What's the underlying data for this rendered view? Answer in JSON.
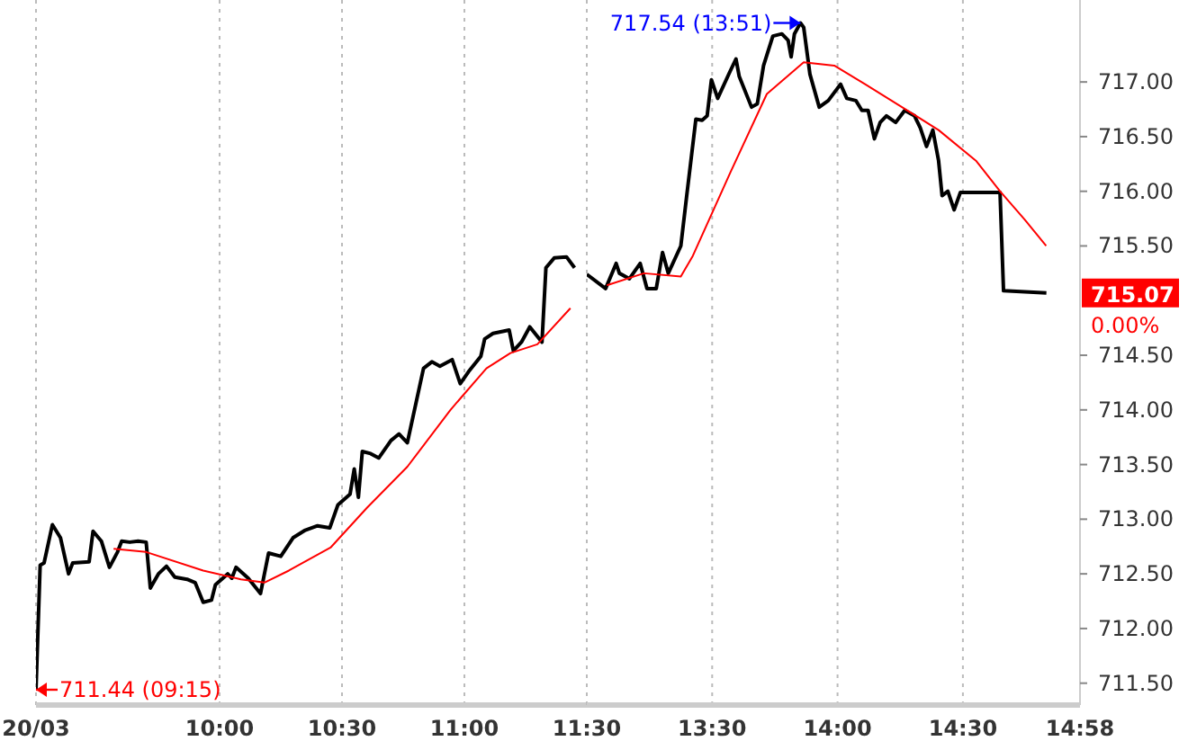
{
  "chart_data": [
    {
      "type": "line",
      "xlim": [
        9.25,
        11.5
      ],
      "xticks": [
        {
          "value": 9.25,
          "label": "20/03"
        },
        {
          "value": 10,
          "label": "10:00"
        },
        {
          "value": 10.5,
          "label": "10:30"
        },
        {
          "value": 11,
          "label": "11:00"
        },
        {
          "value": 11.5,
          "label": "11:30"
        }
      ],
      "ylim": [
        711.3,
        717.75
      ],
      "tick_labels": "x",
      "grid": "x",
      "series": [
        {
          "color": "#000000",
          "x": [
            9.25,
            9.267,
            9.283,
            9.317,
            9.35,
            9.383,
            9.4,
            9.467,
            9.483,
            9.517,
            9.55,
            9.583,
            9.6,
            9.633,
            9.667,
            9.7,
            9.717,
            9.75,
            9.783,
            9.817,
            9.867,
            9.9,
            9.933,
            9.967,
            9.983,
            10.033,
            10.05,
            10.067,
            10.117,
            10.167,
            10.2,
            10.25,
            10.3,
            10.35,
            10.4,
            10.45,
            10.483,
            10.533,
            10.55,
            10.567,
            10.583,
            10.617,
            10.65,
            10.7,
            10.733,
            10.767,
            10.833,
            10.867,
            10.9,
            10.95,
            10.983,
            11.017,
            11.067,
            11.083,
            11.117,
            11.183,
            11.2,
            11.233,
            11.267,
            11.317,
            11.333,
            11.367,
            11.417,
            11.45
          ],
          "values": [
            711.44,
            712.58,
            712.6,
            712.95,
            712.83,
            712.5,
            712.6,
            712.61,
            712.89,
            712.8,
            712.56,
            712.7,
            712.8,
            712.79,
            712.8,
            712.79,
            712.37,
            712.5,
            712.57,
            712.47,
            712.45,
            712.42,
            712.24,
            712.26,
            712.4,
            712.5,
            712.46,
            712.56,
            712.46,
            712.32,
            712.69,
            712.66,
            712.83,
            712.9,
            712.94,
            712.92,
            713.13,
            713.23,
            713.46,
            713.2,
            713.62,
            713.6,
            713.56,
            713.72,
            713.78,
            713.7,
            714.38,
            714.44,
            714.4,
            714.46,
            714.24,
            714.35,
            714.49,
            714.65,
            714.7,
            714.73,
            714.54,
            714.62,
            714.76,
            714.62,
            715.3,
            715.39,
            715.4,
            715.3
          ]
        },
        {
          "color": "#ff0000",
          "x": [
            9.567,
            9.7,
            9.933,
            10.087,
            10.183,
            10.283,
            10.453,
            10.6,
            10.767,
            10.943,
            11.09,
            11.188,
            11.298,
            11.433
          ],
          "values": [
            712.73,
            712.7,
            712.53,
            712.45,
            712.42,
            712.53,
            712.74,
            713.1,
            713.48,
            714.0,
            714.38,
            714.52,
            714.6,
            714.93
          ]
        }
      ],
      "annotations": [
        {
          "text": "711.44 (09:15)",
          "x": 9.25,
          "y": 711.44
        }
      ]
    },
    {
      "type": "line",
      "xlim": [
        13.0,
        14.967
      ],
      "xticks": [
        {
          "value": 13.5,
          "label": "13:30"
        },
        {
          "value": 14,
          "label": "14:00"
        },
        {
          "value": 14.5,
          "label": "14:30"
        },
        {
          "value": 14.967,
          "label": "14:58"
        }
      ],
      "ylim": [
        711.3,
        717.75
      ],
      "yticks": [
        {
          "value": 711.5,
          "label": "711.50"
        },
        {
          "value": 712,
          "label": "712.00"
        },
        {
          "value": 712.5,
          "label": "712.50"
        },
        {
          "value": 713,
          "label": "713.00"
        },
        {
          "value": 713.5,
          "label": "713.50"
        },
        {
          "value": 714,
          "label": "714.00"
        },
        {
          "value": 714.5,
          "label": "714.50"
        },
        {
          "value": 715.5,
          "label": "715.50"
        },
        {
          "value": 716,
          "label": "716.00"
        },
        {
          "value": 716.5,
          "label": "716.50"
        },
        {
          "value": 717,
          "label": "717.00"
        }
      ],
      "grid": "x",
      "series": [
        {
          "color": "#000000",
          "x": [
            13.0,
            13.075,
            13.117,
            13.13,
            13.17,
            13.213,
            13.24,
            13.277,
            13.302,
            13.325,
            13.375,
            13.398,
            13.435,
            13.46,
            13.48,
            13.497,
            13.522,
            13.572,
            13.595,
            13.608,
            13.657,
            13.68,
            13.705,
            13.742,
            13.778,
            13.803,
            13.815,
            13.828,
            13.852,
            13.865,
            13.89,
            13.927,
            13.963,
            14.012,
            14.037,
            14.073,
            14.097,
            14.122,
            14.147,
            14.17,
            14.195,
            14.232,
            14.268,
            14.307,
            14.33,
            14.355,
            14.38,
            14.403,
            14.417,
            14.44,
            14.465,
            14.49,
            14.513,
            14.648,
            14.662,
            14.833
          ],
          "values": [
            715.24,
            715.11,
            715.34,
            715.25,
            715.2,
            715.34,
            715.11,
            715.11,
            715.44,
            715.25,
            715.5,
            715.95,
            716.66,
            716.65,
            716.69,
            717.02,
            716.85,
            717.1,
            717.21,
            717.05,
            716.77,
            716.8,
            717.15,
            717.42,
            717.44,
            717.38,
            717.23,
            717.44,
            717.54,
            717.5,
            717.07,
            716.77,
            716.83,
            716.98,
            716.85,
            716.83,
            716.74,
            716.74,
            716.48,
            716.63,
            716.69,
            716.63,
            716.74,
            716.69,
            716.58,
            716.41,
            716.56,
            716.28,
            715.96,
            716.0,
            715.83,
            715.99,
            715.99,
            715.99,
            715.09,
            715.07
          ]
        },
        {
          "color": "#ff0000",
          "x": [
            13.08,
            13.228,
            13.375,
            13.423,
            13.572,
            13.718,
            13.865,
            13.987,
            14.11,
            14.257,
            14.403,
            14.552,
            14.648,
            14.747,
            14.832
          ],
          "values": [
            715.14,
            715.25,
            715.22,
            715.41,
            716.17,
            716.89,
            717.18,
            717.15,
            716.98,
            716.77,
            716.56,
            716.28,
            716.0,
            715.74,
            715.5
          ]
        }
      ],
      "annotations": [
        {
          "text": "717.54 (13:51)",
          "x": 13.852,
          "y": 717.54
        },
        "715.07",
        "0.00%"
      ]
    }
  ]
}
